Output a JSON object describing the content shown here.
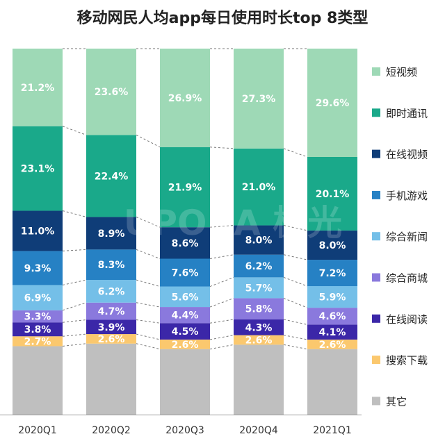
{
  "chart_data": {
    "type": "bar",
    "stacked": true,
    "title": "移动网民人均app每日使用时长top 8类型",
    "categories": [
      "2020Q1",
      "2020Q2",
      "2020Q3",
      "2020Q4",
      "2021Q1"
    ],
    "series": [
      {
        "name": "其它",
        "values": [
          null,
          null,
          null,
          null,
          null
        ],
        "color": "#bfbfbf"
      },
      {
        "name": "搜索下载",
        "values": [
          2.7,
          2.6,
          2.6,
          2.6,
          2.6
        ],
        "color": "#fbc86e"
      },
      {
        "name": "在线阅读",
        "values": [
          3.8,
          3.9,
          4.5,
          4.3,
          4.1
        ],
        "color": "#3b27a8"
      },
      {
        "name": "综合商城",
        "values": [
          3.3,
          4.7,
          4.4,
          5.8,
          4.6
        ],
        "color": "#8a79dd"
      },
      {
        "name": "综合新闻",
        "values": [
          6.9,
          6.2,
          5.6,
          5.7,
          5.9
        ],
        "color": "#74bfe8"
      },
      {
        "name": "手机游戏",
        "values": [
          9.3,
          8.3,
          7.6,
          6.2,
          7.2
        ],
        "color": "#2681c4"
      },
      {
        "name": "在线视频",
        "values": [
          11.0,
          8.9,
          8.6,
          8.0,
          8.0
        ],
        "color": "#0f3d78"
      },
      {
        "name": "即时通讯",
        "values": [
          23.1,
          22.4,
          21.9,
          21.0,
          20.1
        ],
        "color": "#1aa98a"
      },
      {
        "name": "短视频",
        "values": [
          21.2,
          23.6,
          26.9,
          27.3,
          29.6
        ],
        "color": "#9ed9b6"
      }
    ],
    "value_suffix": "%",
    "ylim": [
      0,
      100
    ],
    "legend_position": "right",
    "connector_lines": "dashed",
    "watermark": "UPORA 极光"
  }
}
